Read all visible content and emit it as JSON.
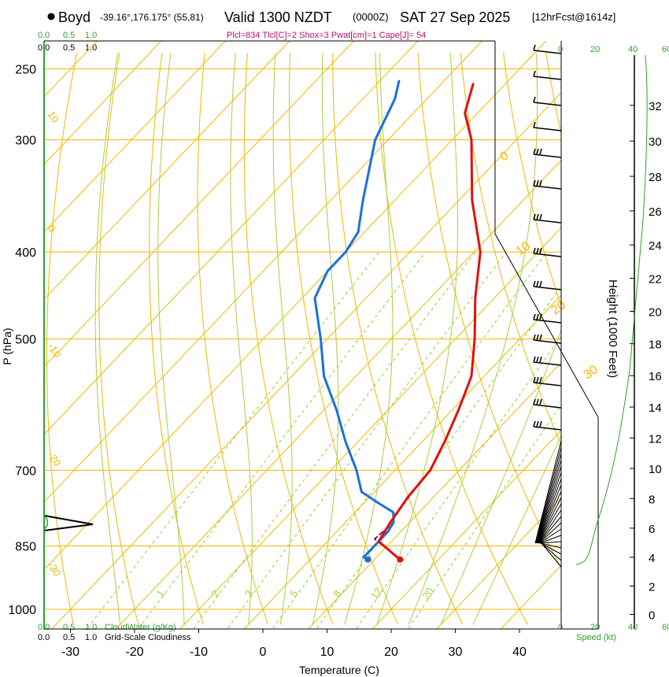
{
  "header": {
    "site_name": "Boyd",
    "coords": "-39.16°,176.175° (55,81)",
    "valid": "Valid 1300 NZDT",
    "utc": "(0000Z)",
    "date": "SAT 27 Sep 2025",
    "fcst": "[12hrFcst@1614z]",
    "params": "Plcl=834 Tlcl[C]=2 Shox=3 Pwat[cm]=1 Cape[J]= 54"
  },
  "colors": {
    "isotherm": "#f0b800",
    "adiabat": "#f0b800",
    "moist_adiabat": "#a8d040",
    "mixing_ratio": "#90d030",
    "temperature": "#e01010",
    "dewpoint": "#1a70e0",
    "parcel": "#802050",
    "green_label": "#30a030",
    "params": "#c01060"
  },
  "chart_data": {
    "type": "skew-t",
    "title": "Valid 1300 NZDT (0000Z) SAT 27 Sep 2025",
    "xlabel": "Temperature (C)",
    "ylabel": "P (hPa)",
    "y2label": "Height (1000 Feet)",
    "pressure_range": [
      1000,
      250
    ],
    "x_ticks": [
      "-30",
      "-20",
      "-10",
      "0",
      "10",
      "20",
      "30",
      "40"
    ],
    "pressure_ticks": [
      "250",
      "300",
      "400",
      "500",
      "700",
      "850",
      "1000"
    ],
    "height_ticks": [
      "0",
      "2",
      "4",
      "6",
      "8",
      "10",
      "12",
      "14",
      "16",
      "18",
      "20",
      "22",
      "24",
      "26",
      "28",
      "30",
      "32"
    ],
    "mixing_ratio_labels": [
      "1",
      "2",
      "3",
      "5",
      "8",
      "12",
      "20"
    ],
    "isotherm_labels_left": [
      "10",
      "0",
      "-10",
      "-20",
      "-30"
    ],
    "adiabat_labels_right": [
      "0",
      "10",
      "20",
      "30"
    ],
    "cloud_water_label": "CloudWater (g/Kg)",
    "cloud_water_ticks": [
      "0.0",
      "0.5",
      "1.0"
    ],
    "cloudiness_label": "Grid-Scale Cloudiness",
    "cloudiness_ticks": [
      "0.0",
      "0.5",
      "1.0"
    ],
    "speed_label": "Speed (kt)",
    "speed_ticks": [
      "0",
      "20",
      "40",
      "60"
    ],
    "temperature": [
      [
        880,
        14
      ],
      [
        860,
        11
      ],
      [
        840,
        8
      ],
      [
        800,
        7
      ],
      [
        750,
        6
      ],
      [
        700,
        5.5
      ],
      [
        650,
        3.5
      ],
      [
        600,
        1
      ],
      [
        550,
        -2
      ],
      [
        500,
        -7
      ],
      [
        450,
        -13
      ],
      [
        400,
        -19
      ],
      [
        350,
        -28
      ],
      [
        300,
        -37
      ],
      [
        280,
        -42
      ],
      [
        260,
        -45
      ]
    ],
    "dewpoint": [
      [
        880,
        9
      ],
      [
        875,
        8
      ],
      [
        860,
        8
      ],
      [
        820,
        8
      ],
      [
        800,
        7.5
      ],
      [
        780,
        6
      ],
      [
        760,
        2
      ],
      [
        740,
        -2
      ],
      [
        700,
        -6
      ],
      [
        650,
        -12
      ],
      [
        600,
        -18
      ],
      [
        550,
        -25
      ],
      [
        500,
        -31
      ],
      [
        450,
        -38
      ],
      [
        420,
        -40
      ],
      [
        400,
        -40
      ],
      [
        380,
        -41
      ],
      [
        350,
        -45
      ],
      [
        300,
        -52
      ],
      [
        270,
        -55
      ],
      [
        258,
        -57
      ]
    ],
    "parcel": [
      [
        880,
        14
      ],
      [
        860,
        11
      ],
      [
        835,
        7
      ],
      [
        800,
        7.5
      ]
    ]
  }
}
